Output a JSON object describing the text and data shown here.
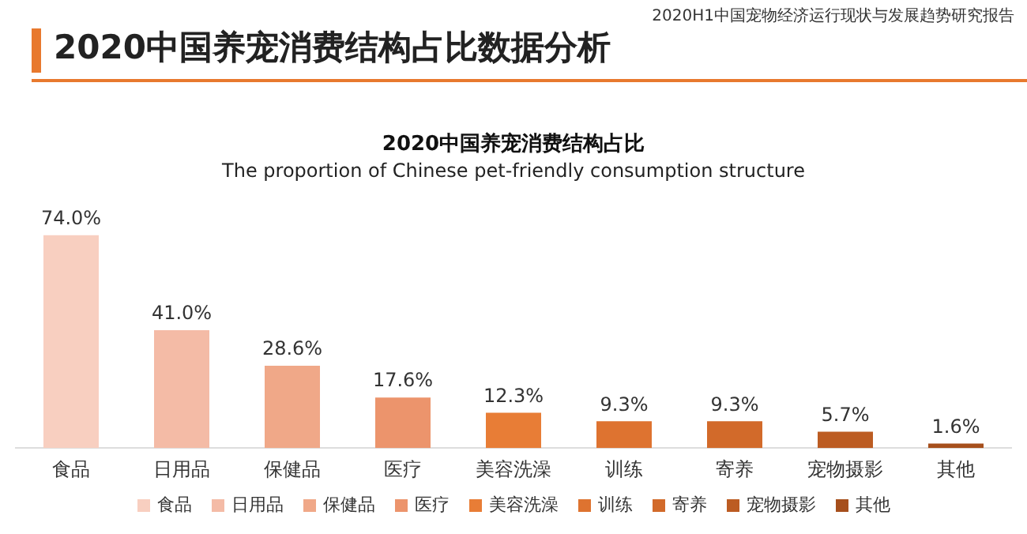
{
  "chart_data": {
    "type": "bar",
    "title": "2020中国养宠消费结构占比数据分析",
    "subtitle": [
      "2020中国养宠消费结构占比",
      "The proportion of Chinese pet-friendly consumption structure"
    ],
    "annotations": [
      "2020H1中国宠物经济运行现状与发展趋势研究报告"
    ],
    "categories": [
      "食品",
      "日用品",
      "保健品",
      "医疗",
      "美容洗澡",
      "训练",
      "寄养",
      "宠物摄影",
      "其他"
    ],
    "values": [
      74.0,
      41.0,
      28.6,
      17.6,
      12.3,
      9.3,
      9.3,
      5.7,
      1.6
    ],
    "value_labels": [
      "74.0%",
      "41.0%",
      "28.6%",
      "17.6%",
      "12.3%",
      "9.3%",
      "9.3%",
      "5.7%",
      "1.6%"
    ],
    "colors": [
      "#f8cfc0",
      "#f4bba6",
      "#f0a888",
      "#ec946c",
      "#e87d36",
      "#de7330",
      "#d26a2a",
      "#bc5c22",
      "#a64f1c"
    ],
    "grid": false
  }
}
